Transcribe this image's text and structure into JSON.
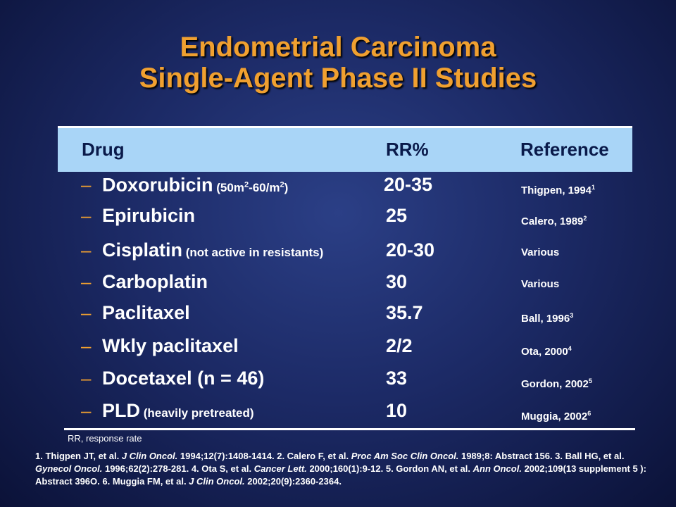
{
  "title": {
    "line1": "Endometrial Carcinoma",
    "line2": "Single-Agent Phase II Studies"
  },
  "colors": {
    "title": "#f0a030",
    "header_bg": "#a9d5f7",
    "header_text": "#0a1a4a",
    "background": "#1c2a66",
    "dash": "#f0a030"
  },
  "table": {
    "headers": {
      "drug": "Drug",
      "rr": "RR%",
      "reference": "Reference"
    },
    "rows": [
      {
        "drug": "Doxorubicin",
        "note_prefix": " (50m",
        "sup1": "2",
        "note_mid": "-60/m",
        "sup2": "2",
        "note_suffix": ")",
        "rr": "20-35",
        "ref": "Thigpen, 1994",
        "ref_sup": "1"
      },
      {
        "drug": "Epirubicin",
        "rr": "25",
        "ref": "Calero, 1989",
        "ref_sup": "2"
      },
      {
        "drug": "Cisplatin",
        "note": " (not active in resistants)",
        "rr": "20-30",
        "ref": "Various"
      },
      {
        "drug": "Carboplatin",
        "rr": "30",
        "ref": "Various"
      },
      {
        "drug": "Paclitaxel",
        "rr": "35.7",
        "ref": "Ball, 1996",
        "ref_sup": "3"
      },
      {
        "drug": "Wkly paclitaxel",
        "rr": "2/2",
        "ref": "Ota, 2000",
        "ref_sup": "4"
      },
      {
        "drug": "Docetaxel (n = 46)",
        "rr": "33",
        "ref": "Gordon, 2002",
        "ref_sup": "5"
      },
      {
        "drug": "PLD",
        "note": " (heavily pretreated)",
        "rr": "10",
        "ref": "Muggia, 2002",
        "ref_sup": "6"
      }
    ],
    "dash": "–"
  },
  "footnote": "RR, response rate",
  "references": {
    "r1a": "1. Thigpen JT, et al. ",
    "r1j": "J Clin Oncol.",
    "r1b": " 1994;12(7):1408-1414. 2. Calero F, et al. ",
    "r2j": "Proc Am Soc Clin Oncol.",
    "r2b": " 1989;8: Abstract 156. 3. Ball HG, et al. ",
    "r3j": "Gynecol Oncol.",
    "r3b": " 1996;62(2):278-281. 4. Ota S, et al. ",
    "r4j": "Cancer Lett.",
    "r4b": " 2000;160(1):9-12. 5. Gordon AN, et al. ",
    "r5j": "Ann Oncol.",
    "r5b": " 2002;109(13 supplement 5 ): Abstract 396O. 6. Muggia FM, et al. ",
    "r6j": "J Clin Oncol.",
    "r6b": " 2002;20(9):2360-2364."
  }
}
